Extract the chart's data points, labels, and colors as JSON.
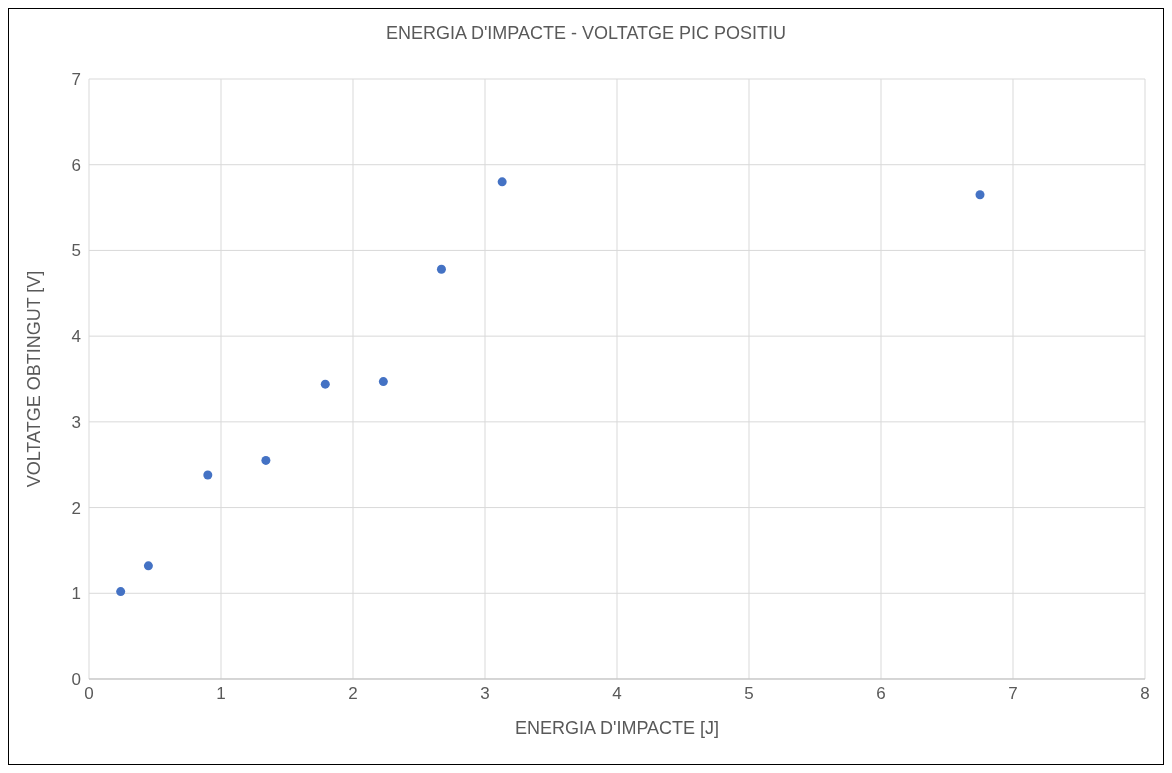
{
  "chart_data": {
    "type": "scatter",
    "title": "ENERGIA D'IMPACTE - VOLTATGE PIC POSITIU",
    "xlabel": "ENERGIA D'IMPACTE [J]",
    "ylabel": "VOLTATGE OBTINGUT [V]",
    "x": [
      0.24,
      0.45,
      0.9,
      1.34,
      1.79,
      2.23,
      2.67,
      3.13,
      6.75
    ],
    "series": [
      {
        "color": "#4472c4",
        "values": [
          1.02,
          1.32,
          2.38,
          2.55,
          3.44,
          3.47,
          4.78,
          5.8,
          5.65
        ]
      }
    ],
    "xlim": [
      0,
      8
    ],
    "xticks": [
      0,
      1,
      2,
      3,
      4,
      5,
      6,
      7,
      8
    ],
    "ylim": [
      0,
      7
    ],
    "yticks": [
      0,
      1,
      2,
      3,
      4,
      5,
      6,
      7
    ],
    "grid": true,
    "marker": "circle",
    "legend": false
  }
}
